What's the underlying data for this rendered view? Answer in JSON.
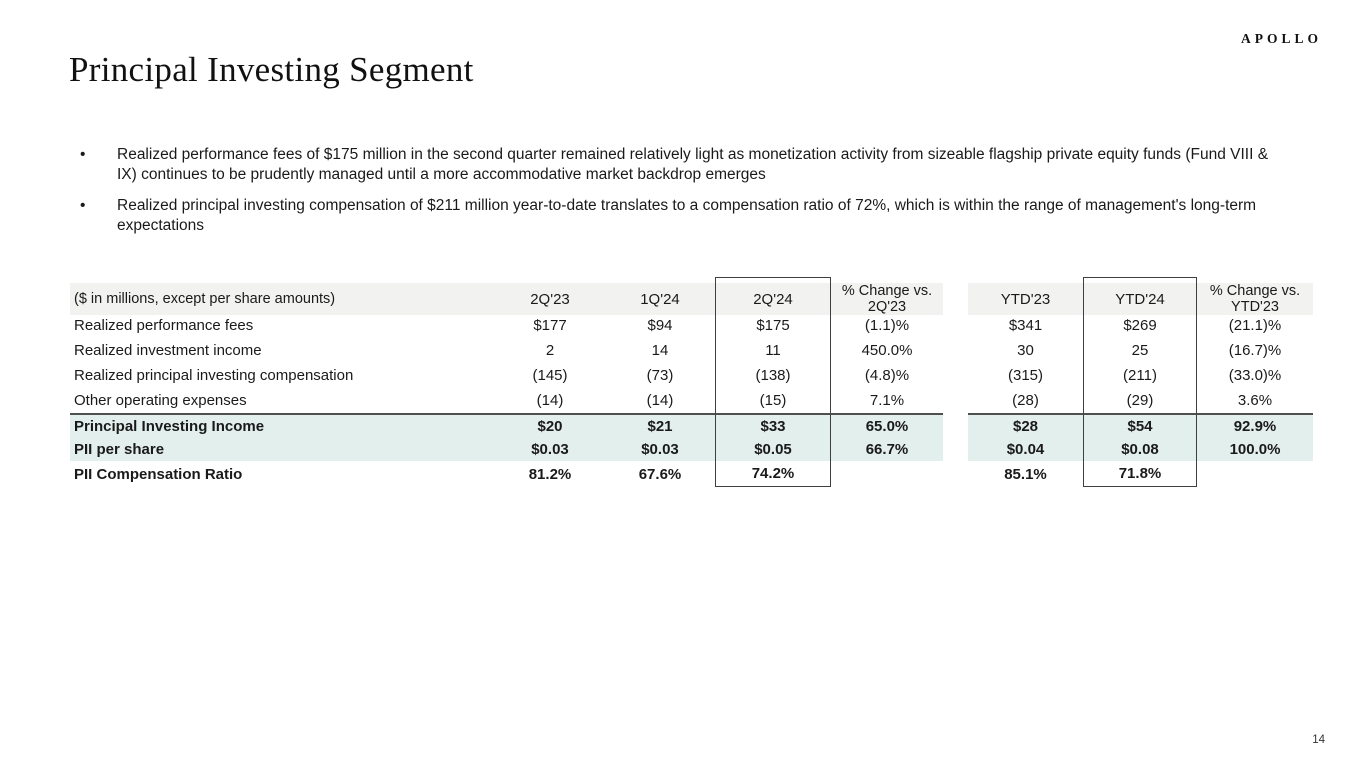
{
  "logo": "APOLLO",
  "title": "Principal Investing Segment",
  "page_number": "14",
  "bullets": [
    "Realized performance fees of $175 million in the second quarter remained relatively light as monetization activity from sizeable flagship private equity funds (Fund VIII & IX) continues to be prudently managed until a more accommodative market backdrop emerges",
    "Realized principal investing compensation of $211 million year-to-date translates to a compensation ratio of 72%, which is within the range of management's long-term expectations"
  ],
  "table": {
    "note": "($ in millions, except per share amounts)",
    "columns": [
      "2Q'23",
      "1Q'24",
      "2Q'24",
      "% Change vs. 2Q'23",
      "YTD'23",
      "YTD'24",
      "% Change vs. YTD'23"
    ],
    "boxed_columns": [
      "2Q'24",
      "YTD'24"
    ],
    "rows": [
      {
        "label": "Realized performance fees",
        "values": [
          "$177",
          "$94",
          "$175",
          "(1.1)%",
          "$341",
          "$269",
          "(21.1)%"
        ],
        "bold": false,
        "highlight": false,
        "top_border": false
      },
      {
        "label": "Realized investment income",
        "values": [
          "2",
          "14",
          "11",
          "450.0%",
          "30",
          "25",
          "(16.7)%"
        ],
        "bold": false,
        "highlight": false,
        "top_border": false
      },
      {
        "label": "Realized principal investing compensation",
        "values": [
          "(145)",
          "(73)",
          "(138)",
          "(4.8)%",
          "(315)",
          "(211)",
          "(33.0)%"
        ],
        "bold": false,
        "highlight": false,
        "top_border": false
      },
      {
        "label": "Other operating expenses",
        "values": [
          "(14)",
          "(14)",
          "(15)",
          "7.1%",
          "(28)",
          "(29)",
          "3.6%"
        ],
        "bold": false,
        "highlight": false,
        "top_border": false
      },
      {
        "label": "Principal Investing Income",
        "values": [
          "$20",
          "$21",
          "$33",
          "65.0%",
          "$28",
          "$54",
          "92.9%"
        ],
        "bold": true,
        "highlight": true,
        "top_border": true
      },
      {
        "label": "PII per share",
        "values": [
          "$0.03",
          "$0.03",
          "$0.05",
          "66.7%",
          "$0.04",
          "$0.08",
          "100.0%"
        ],
        "bold": true,
        "highlight": true,
        "top_border": false
      },
      {
        "label": "PII Compensation Ratio",
        "values": [
          "81.2%",
          "67.6%",
          "74.2%",
          "",
          "85.1%",
          "71.8%",
          ""
        ],
        "bold": true,
        "highlight": false,
        "top_border": false
      }
    ],
    "colors": {
      "header_bg": "#f2f2f0",
      "highlight_bg": "#e3efec",
      "rule_dark": "#4f4f4f",
      "box_border": "#3f3f3f",
      "text": "#1a1a1a"
    }
  }
}
